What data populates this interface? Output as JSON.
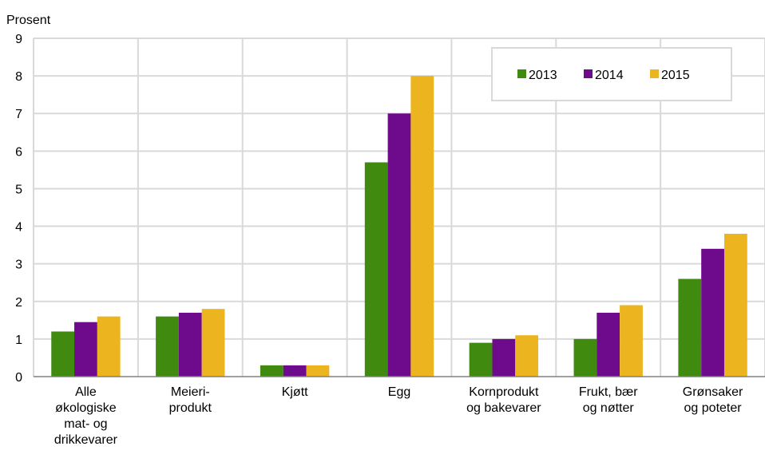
{
  "chart_data": {
    "type": "bar",
    "ylabel": "Prosent",
    "ylim": [
      0,
      9
    ],
    "yticks": [
      "0",
      "1",
      "2",
      "3",
      "4",
      "5",
      "6",
      "7",
      "8",
      "9"
    ],
    "grid": true,
    "legend_position": "top-right",
    "categories": [
      [
        "Alle",
        "økologiske",
        "mat- og",
        "drikkevarer"
      ],
      [
        "Meieri-",
        "produkt"
      ],
      [
        "Kjøtt"
      ],
      [
        "Egg"
      ],
      [
        "Kornprodukt",
        "og bakevarer"
      ],
      [
        "Frukt, bær",
        "og nøtter"
      ],
      [
        "Grønsaker",
        "og poteter"
      ]
    ],
    "series": [
      {
        "name": "2013",
        "color": "#3f8a0f",
        "values": [
          1.2,
          1.6,
          0.3,
          5.7,
          0.9,
          1.0,
          2.6
        ]
      },
      {
        "name": "2014",
        "color": "#6e0a8c",
        "values": [
          1.45,
          1.7,
          0.3,
          7.0,
          1.0,
          1.7,
          3.4
        ]
      },
      {
        "name": "2015",
        "color": "#ecb41e",
        "values": [
          1.6,
          1.8,
          0.3,
          8.0,
          1.1,
          1.9,
          3.8
        ]
      }
    ]
  }
}
